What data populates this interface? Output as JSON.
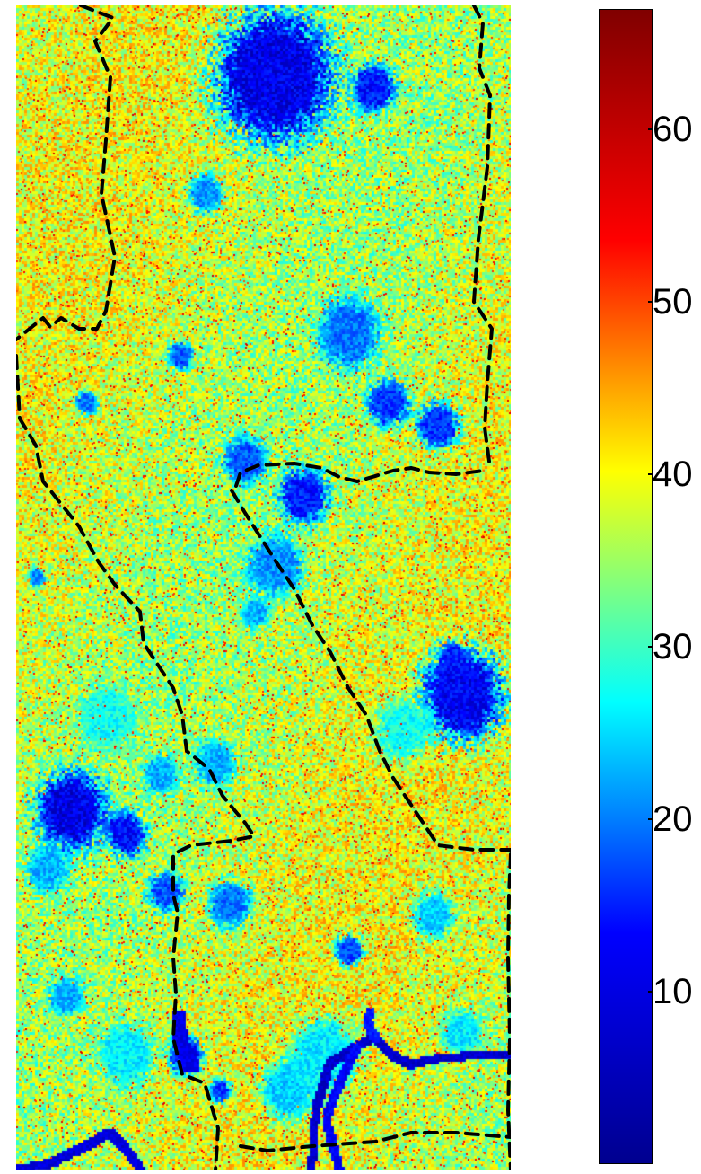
{
  "chart_data": {
    "type": "heatmap",
    "colormap": "jet",
    "colormap_stops": [
      "#00008f",
      "#0000ff",
      "#00ffff",
      "#ffff00",
      "#ff0000",
      "#800000"
    ],
    "value_range": [
      0,
      67
    ],
    "colorbar": {
      "ticks": [
        10,
        20,
        30,
        40,
        50,
        60
      ],
      "labels": [
        "10",
        "20",
        "30",
        "40",
        "50",
        "60"
      ]
    },
    "background_value_typical": 38,
    "low_value_regions_value": 3,
    "boundary_line": {
      "style": "dashed",
      "color": "#000000"
    }
  }
}
